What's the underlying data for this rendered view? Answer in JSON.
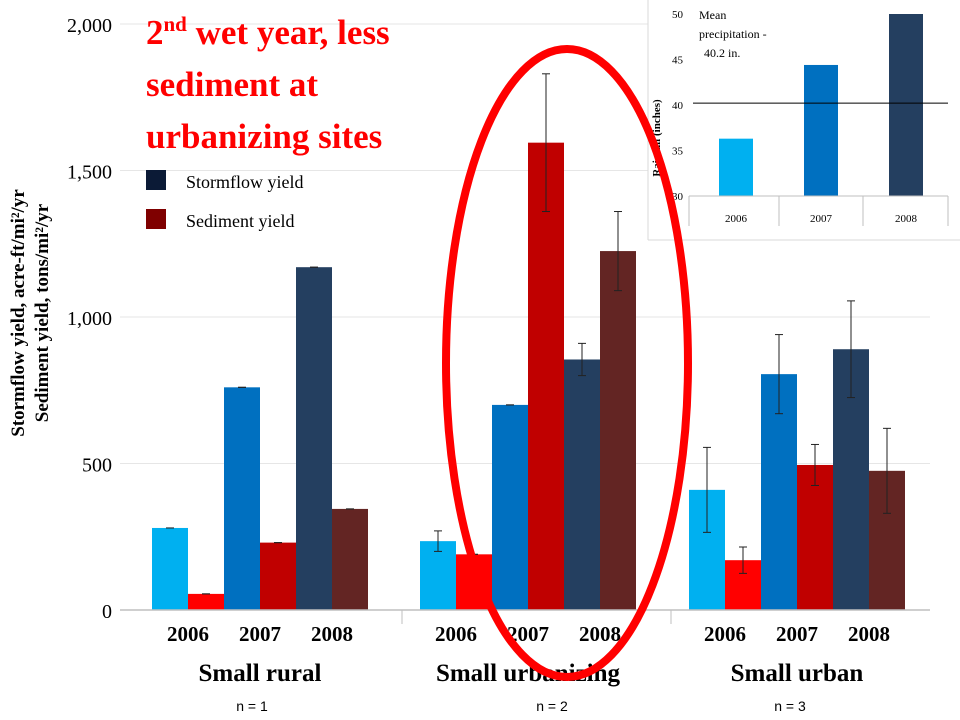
{
  "headline": {
    "line1_prefix": "2",
    "line1_sup": "nd",
    "line1_rest": " wet year, less",
    "line2": "sediment at",
    "line3": "urbanizing sites"
  },
  "colors": {
    "c2006_storm": "#00b0f0",
    "c2007_storm": "#0070c0",
    "c2008_storm": "#243f60",
    "c2006_sed": "#ff0000",
    "c2007_sed": "#c00000",
    "c2008_sed": "#632523",
    "legend_storm": "#0b1a36",
    "legend_sed": "#7f0000",
    "headline": "#ff0000",
    "ellipse": "#ff0000"
  },
  "legend": [
    {
      "label": "Stormflow yield",
      "color_key": "legend_storm"
    },
    {
      "label": "Sediment yield",
      "color_key": "legend_sed"
    }
  ],
  "sample_sizes": [
    "n = 1",
    "n = 2",
    "n = 3"
  ],
  "chart_data": [
    {
      "type": "bar",
      "ylabel_line1": "Stormflow yield, acre-ft/mi²/yr",
      "ylabel_line2": "Sediment yield, tons/mi²/yr",
      "ylim": [
        0,
        2000
      ],
      "yticks": [
        0,
        500,
        1000,
        1500,
        2000
      ],
      "ytick_labels": [
        "0",
        "500",
        "1,000",
        "1,500",
        "2,000"
      ],
      "groups": [
        {
          "name": "Small rural",
          "year_labels": [
            "2006",
            "2007",
            "2008"
          ],
          "bars": [
            {
              "year": "2006",
              "measure": "Stormflow yield",
              "value": 280,
              "error": 0,
              "color_key": "c2006_storm"
            },
            {
              "year": "2006",
              "measure": "Sediment yield",
              "value": 55,
              "error": 0,
              "color_key": "c2006_sed"
            },
            {
              "year": "2007",
              "measure": "Stormflow yield",
              "value": 760,
              "error": 0,
              "color_key": "c2007_storm"
            },
            {
              "year": "2007",
              "measure": "Sediment yield",
              "value": 230,
              "error": 0,
              "color_key": "c2007_sed"
            },
            {
              "year": "2008",
              "measure": "Stormflow yield",
              "value": 1170,
              "error": 0,
              "color_key": "c2008_storm"
            },
            {
              "year": "2008",
              "measure": "Sediment yield",
              "value": 345,
              "error": 0,
              "color_key": "c2008_sed"
            }
          ]
        },
        {
          "name": "Small urbanizing",
          "year_labels": [
            "2006",
            "2007",
            "2008"
          ],
          "bars": [
            {
              "year": "2006",
              "measure": "Stormflow yield",
              "value": 235,
              "error": 35,
              "color_key": "c2006_storm"
            },
            {
              "year": "2006",
              "measure": "Sediment yield",
              "value": 190,
              "error": 0,
              "color_key": "c2006_sed"
            },
            {
              "year": "2007",
              "measure": "Stormflow yield",
              "value": 700,
              "error": 0,
              "color_key": "c2007_storm"
            },
            {
              "year": "2007",
              "measure": "Sediment yield",
              "value": 1595,
              "error": 235,
              "color_key": "c2007_sed"
            },
            {
              "year": "2008",
              "measure": "Stormflow yield",
              "value": 855,
              "error": 55,
              "color_key": "c2008_storm"
            },
            {
              "year": "2008",
              "measure": "Sediment yield",
              "value": 1225,
              "error": 135,
              "color_key": "c2008_sed"
            }
          ]
        },
        {
          "name": "Small urban",
          "year_labels": [
            "2006",
            "2007",
            "2008"
          ],
          "bars": [
            {
              "year": "2006",
              "measure": "Stormflow yield",
              "value": 410,
              "error": 145,
              "color_key": "c2006_storm"
            },
            {
              "year": "2006",
              "measure": "Sediment yield",
              "value": 170,
              "error": 45,
              "color_key": "c2006_sed"
            },
            {
              "year": "2007",
              "measure": "Stormflow yield",
              "value": 805,
              "error": 135,
              "color_key": "c2007_storm"
            },
            {
              "year": "2007",
              "measure": "Sediment yield",
              "value": 495,
              "error": 70,
              "color_key": "c2007_sed"
            },
            {
              "year": "2008",
              "measure": "Stormflow yield",
              "value": 890,
              "error": 165,
              "color_key": "c2008_storm"
            },
            {
              "year": "2008",
              "measure": "Sediment yield",
              "value": 475,
              "error": 145,
              "color_key": "c2008_sed"
            }
          ]
        }
      ]
    },
    {
      "type": "bar",
      "ylabel": "Rainfall (inches)",
      "ylim": [
        30,
        50
      ],
      "yticks": [
        30,
        35,
        40,
        45,
        50
      ],
      "ytick_labels": [
        "30",
        "35",
        "40",
        "45",
        "50"
      ],
      "categories": [
        "2006",
        "2007",
        "2008"
      ],
      "values": [
        36.3,
        44.4,
        50
      ],
      "color_keys": [
        "c2006_storm",
        "c2007_storm",
        "c2008_storm"
      ],
      "reference_line": {
        "value": 40.2,
        "label_lines": [
          "Mean",
          "precipitation -",
          "40.2 in."
        ]
      }
    }
  ]
}
